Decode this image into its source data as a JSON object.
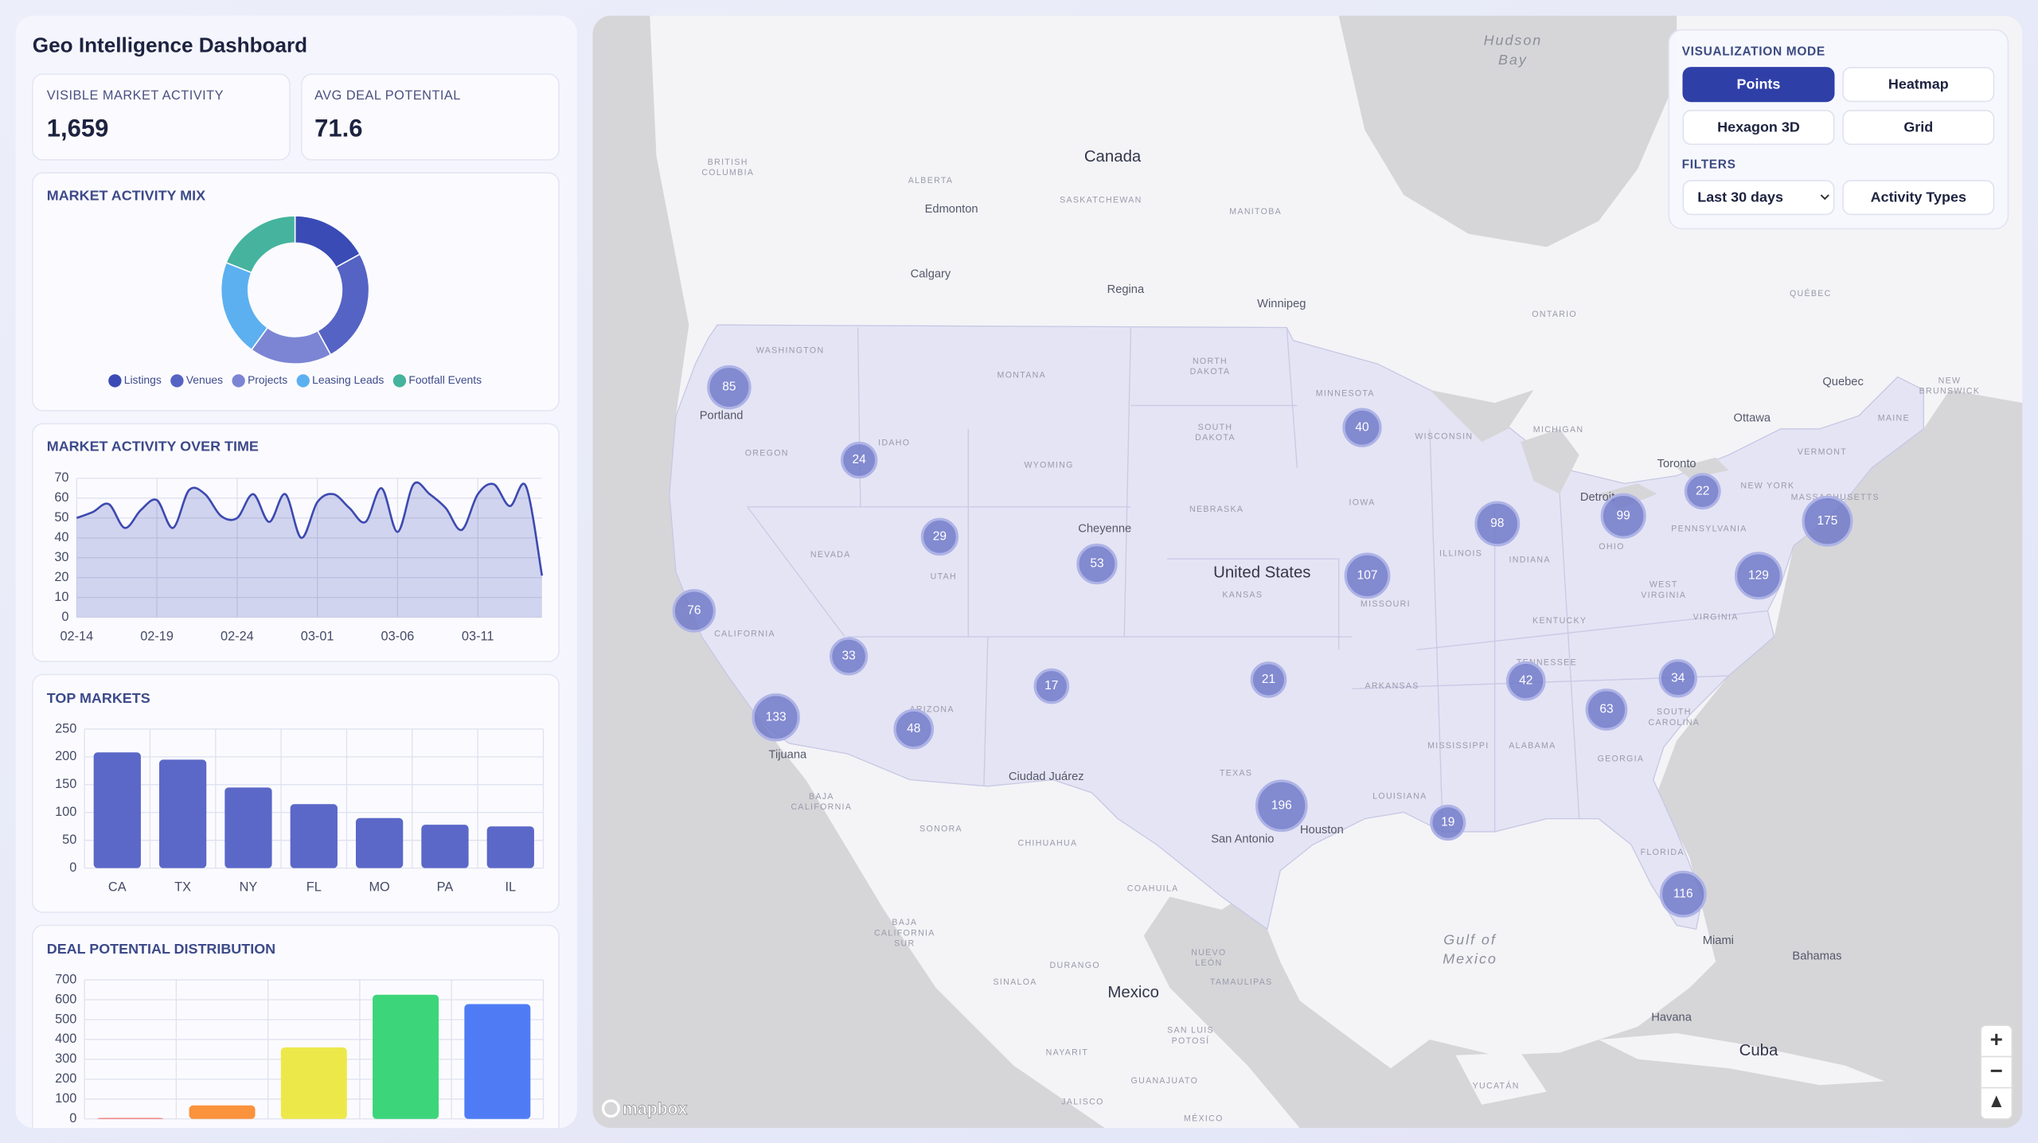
{
  "header": {
    "title": "Geo Intelligence Dashboard"
  },
  "kpis": [
    {
      "label": "VISIBLE MARKET ACTIVITY",
      "value": "1,659"
    },
    {
      "label": "AVG DEAL POTENTIAL",
      "value": "71.6"
    }
  ],
  "chart_data": [
    {
      "type": "donut",
      "title": "MARKET ACTIVITY MIX",
      "categories": [
        "Listings",
        "Venues",
        "Projects",
        "Leasing Leads",
        "Footfall Events"
      ],
      "values": [
        17,
        25,
        18,
        21,
        19
      ],
      "colors": [
        "#3a4bb6",
        "#5563c4",
        "#7c85d4",
        "#5cb0f0",
        "#45b39d"
      ]
    },
    {
      "type": "area",
      "title": "MARKET ACTIVITY OVER TIME",
      "categories": [
        "02-14",
        null,
        null,
        null,
        null,
        "02-19",
        null,
        null,
        null,
        null,
        "02-24",
        null,
        null,
        null,
        null,
        "03-01",
        null,
        null,
        null,
        null,
        "03-06",
        null,
        null,
        null,
        null,
        "03-11",
        null,
        null,
        null,
        null
      ],
      "values": [
        50,
        53,
        57,
        45,
        54,
        59,
        45,
        64,
        62,
        51,
        50,
        62,
        48,
        62,
        40,
        58,
        62,
        55,
        48,
        65,
        43,
        67,
        62,
        55,
        44,
        62,
        67,
        56,
        66,
        21
      ],
      "color": "#3d4ab0",
      "ylim": [
        0,
        70
      ],
      "yticks": [
        0,
        10,
        20,
        30,
        40,
        50,
        60,
        70
      ],
      "grid": true
    },
    {
      "type": "bar",
      "title": "TOP MARKETS",
      "categories": [
        "CA",
        "TX",
        "NY",
        "FL",
        "MO",
        "PA",
        "IL"
      ],
      "values": [
        208,
        195,
        145,
        115,
        90,
        78,
        75
      ],
      "color": "#5b68c8",
      "ylim": [
        0,
        250
      ],
      "yticks": [
        0,
        50,
        100,
        150,
        200,
        250
      ],
      "grid": true
    },
    {
      "type": "bar",
      "title": "DEAL POTENTIAL DISTRIBUTION",
      "categories": [
        null,
        null,
        null,
        null,
        null
      ],
      "values": [
        5,
        68,
        360,
        625,
        578
      ],
      "colors": [
        "#f87171",
        "#fb923c",
        "#ede84a",
        "#3dd57a",
        "#4f7cf5"
      ],
      "ylim": [
        0,
        700
      ],
      "yticks": [
        0,
        100,
        200,
        300,
        400,
        500,
        600,
        700
      ],
      "grid": true
    }
  ],
  "map": {
    "controls": {
      "mode_title": "VISUALIZATION MODE",
      "modes": [
        "Points",
        "Heatmap",
        "Hexagon 3D",
        "Grid"
      ],
      "active_mode": 0,
      "filters_title": "FILTERS",
      "period": "Last 30 days",
      "activity_filter": "Activity Types"
    },
    "clusters": [
      85,
      24,
      29,
      53,
      76,
      33,
      133,
      48,
      17,
      21,
      40,
      107,
      98,
      99,
      22,
      175,
      129,
      42,
      34,
      63,
      196,
      19,
      116
    ],
    "countries": [
      "Canada",
      "United States",
      "Mexico",
      "Cuba"
    ],
    "water": [
      [
        "Hudson",
        "Bay"
      ],
      [
        "Gulf of",
        "Mexico"
      ]
    ],
    "cities": [
      "Edmonton",
      "Calgary",
      "Regina",
      "Winnipeg",
      "Portland",
      "Cheyenne",
      "Toronto",
      "Ottawa",
      "Quebec",
      "Detroit",
      "Houston",
      "San Antonio",
      "Tijuana",
      "Ciudad Juárez",
      "Miami",
      "Havana",
      "Bahamas"
    ],
    "regions": [
      [
        "BRITISH",
        "COLUMBIA"
      ],
      "ALBERTA",
      "SASKATCHEWAN",
      "MANITOBA",
      "ONTARIO",
      "QUÉBEC",
      [
        "NEW",
        "BRUNSWICK"
      ],
      "MAINE",
      "VERMONT",
      "NEW YORK",
      "MASSACHUSETTS",
      "PENNSYLVANIA",
      "WASHINGTON",
      "OREGON",
      "IDAHO",
      "MONTANA",
      [
        "NORTH",
        "DAKOTA"
      ],
      [
        "SOUTH",
        "DAKOTA"
      ],
      "MINNESOTA",
      "WISCONSIN",
      "MICHIGAN",
      "WYOMING",
      "NEBRASKA",
      "IOWA",
      "ILLINOIS",
      "INDIANA",
      "OHIO",
      "NEVADA",
      "UTAH",
      "KANSAS",
      "MISSOURI",
      "KENTUCKY",
      [
        "WEST",
        "VIRGINIA"
      ],
      "VIRGINIA",
      "CALIFORNIA",
      "ARIZONA",
      "TENNESSEE",
      "ARKANSAS",
      [
        "SOUTH",
        "CAROLINA"
      ],
      "MISSISSIPPI",
      "ALABAMA",
      "GEORGIA",
      "TEXAS",
      "LOUISIANA",
      "FLORIDA",
      [
        "BAJA",
        "CALIFORNIA"
      ],
      "SONORA",
      "CHIHUAHUA",
      "COAHUILA",
      [
        "BAJA",
        "CALIFORNIA",
        "SUR"
      ],
      "DURANGO",
      [
        "NUEVO",
        "LEÓN"
      ],
      "TAMAULIPAS",
      "SINALOA",
      [
        "SAN LUIS",
        "POTOSÍ"
      ],
      "NAYARIT",
      "GUANAJUATO",
      "JALISCO",
      "YUCATÁN",
      "MÉXICO"
    ],
    "zoom": [
      "+",
      "−"
    ],
    "attribution": "mapbox"
  }
}
